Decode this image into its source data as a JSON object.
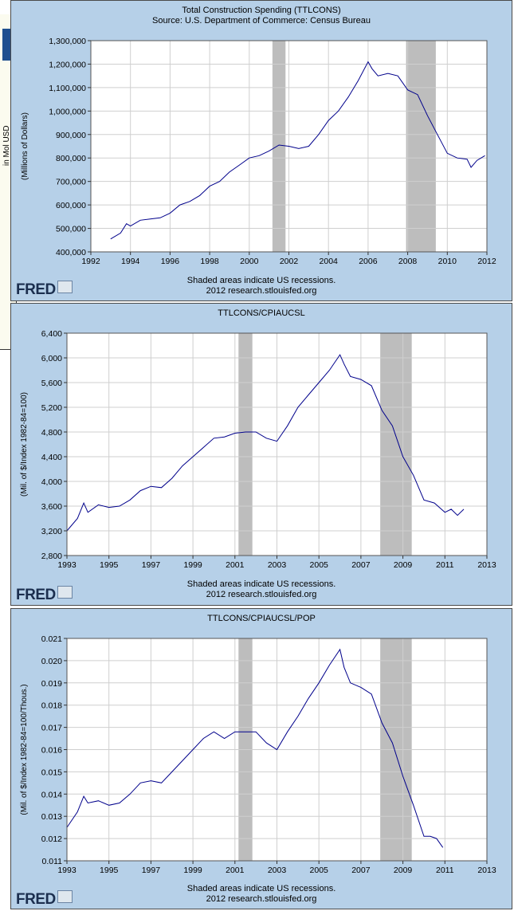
{
  "background_fragment": {
    "text": "in Mol USD"
  },
  "chart_data": [
    {
      "type": "line",
      "title": "Total Construction Spending (TTLCONS)",
      "subtitle": "Source: U.S. Department of Commerce: Census Bureau",
      "xlabel": "",
      "ylabel": "(Millions of Dollars)",
      "xlim": [
        1992,
        2012
      ],
      "ylim": [
        400000,
        1300000
      ],
      "xticks": [
        1992,
        1994,
        1996,
        1998,
        2000,
        2002,
        2004,
        2006,
        2008,
        2010,
        2012
      ],
      "yticks": [
        400000,
        500000,
        600000,
        700000,
        800000,
        900000,
        1000000,
        1100000,
        1200000,
        1300000
      ],
      "ytick_labels": [
        "400,000",
        "500,000",
        "600,000",
        "700,000",
        "800,000",
        "900,000",
        "1,000,000",
        "1,100,000",
        "1,200,000",
        "1,300,000"
      ],
      "recessions": [
        [
          2001.17,
          2001.83
        ],
        [
          2007.92,
          2009.42
        ]
      ],
      "series": [
        {
          "name": "TTLCONS",
          "color": "#00008b",
          "x": [
            1993.0,
            1993.5,
            1993.8,
            1994.0,
            1994.5,
            1995.0,
            1995.5,
            1996.0,
            1996.5,
            1997.0,
            1997.5,
            1998.0,
            1998.5,
            1999.0,
            1999.5,
            2000.0,
            2000.5,
            2001.0,
            2001.5,
            2002.0,
            2002.5,
            2003.0,
            2003.5,
            2004.0,
            2004.5,
            2005.0,
            2005.5,
            2006.0,
            2006.2,
            2006.5,
            2007.0,
            2007.5,
            2008.0,
            2008.5,
            2009.0,
            2009.5,
            2010.0,
            2010.5,
            2011.0,
            2011.2,
            2011.5,
            2011.9
          ],
          "values": [
            455000,
            480000,
            520000,
            510000,
            535000,
            540000,
            545000,
            565000,
            600000,
            615000,
            640000,
            680000,
            700000,
            740000,
            770000,
            800000,
            810000,
            830000,
            855000,
            850000,
            840000,
            850000,
            900000,
            960000,
            1000000,
            1060000,
            1130000,
            1210000,
            1180000,
            1150000,
            1160000,
            1150000,
            1090000,
            1070000,
            980000,
            900000,
            820000,
            800000,
            795000,
            760000,
            790000,
            810000
          ]
        }
      ],
      "source_line": "Shaded areas indicate US recessions.",
      "credit_line": "2012 research.stlouisfed.org",
      "logo": "FRED"
    },
    {
      "type": "line",
      "title": "TTLCONS/CPIAUCSL",
      "xlabel": "",
      "ylabel": "(Mil. of $/Index 1982-84=100)",
      "xlim": [
        1993,
        2013
      ],
      "ylim": [
        2800,
        6400
      ],
      "xticks": [
        1993,
        1995,
        1997,
        1999,
        2001,
        2003,
        2005,
        2007,
        2009,
        2011,
        2013
      ],
      "yticks": [
        2800,
        3200,
        3600,
        4000,
        4400,
        4800,
        5200,
        5600,
        6000,
        6400
      ],
      "ytick_labels": [
        "2,800",
        "3,200",
        "3,600",
        "4,000",
        "4,400",
        "4,800",
        "5,200",
        "5,600",
        "6,000",
        "6,400"
      ],
      "recessions": [
        [
          2001.17,
          2001.83
        ],
        [
          2007.92,
          2009.42
        ]
      ],
      "series": [
        {
          "name": "TTLCONS/CPIAUCSL",
          "color": "#00008b",
          "x": [
            1993.0,
            1993.5,
            1993.8,
            1994.0,
            1994.5,
            1995.0,
            1995.5,
            1996.0,
            1996.5,
            1997.0,
            1997.5,
            1998.0,
            1998.5,
            1999.0,
            1999.5,
            2000.0,
            2000.5,
            2001.0,
            2001.5,
            2002.0,
            2002.5,
            2003.0,
            2003.5,
            2004.0,
            2004.5,
            2005.0,
            2005.5,
            2006.0,
            2006.2,
            2006.5,
            2007.0,
            2007.5,
            2008.0,
            2008.5,
            2009.0,
            2009.5,
            2010.0,
            2010.5,
            2011.0,
            2011.3,
            2011.6,
            2011.9
          ],
          "values": [
            3200,
            3400,
            3650,
            3500,
            3620,
            3580,
            3600,
            3700,
            3850,
            3920,
            3900,
            4050,
            4250,
            4400,
            4550,
            4700,
            4720,
            4780,
            4800,
            4800,
            4700,
            4650,
            4900,
            5200,
            5400,
            5600,
            5800,
            6050,
            5900,
            5700,
            5650,
            5550,
            5150,
            4900,
            4400,
            4100,
            3700,
            3650,
            3500,
            3550,
            3450,
            3550
          ]
        }
      ],
      "source_line": "Shaded areas indicate US recessions.",
      "credit_line": "2012 research.stlouisfed.org",
      "logo": "FRED"
    },
    {
      "type": "line",
      "title": "TTLCONS/CPIAUCSL/POP",
      "xlabel": "",
      "ylabel": "(Mil. of $/Index 1982-84=100/Thous.)",
      "xlim": [
        1993,
        2013
      ],
      "ylim": [
        0.011,
        0.021
      ],
      "xticks": [
        1993,
        1995,
        1997,
        1999,
        2001,
        2003,
        2005,
        2007,
        2009,
        2011,
        2013
      ],
      "yticks": [
        0.011,
        0.012,
        0.013,
        0.014,
        0.015,
        0.016,
        0.017,
        0.018,
        0.019,
        0.02,
        0.021
      ],
      "ytick_labels": [
        "0.011",
        "0.012",
        "0.013",
        "0.014",
        "0.015",
        "0.016",
        "0.017",
        "0.018",
        "0.019",
        "0.020",
        "0.021"
      ],
      "recessions": [
        [
          2001.17,
          2001.83
        ],
        [
          2007.92,
          2009.42
        ]
      ],
      "series": [
        {
          "name": "TTLCONS/CPIAUCSL/POP",
          "color": "#00008b",
          "x": [
            1993.0,
            1993.5,
            1993.8,
            1994.0,
            1994.5,
            1995.0,
            1995.5,
            1996.0,
            1996.5,
            1997.0,
            1997.5,
            1998.0,
            1998.5,
            1999.0,
            1999.5,
            2000.0,
            2000.5,
            2001.0,
            2001.5,
            2002.0,
            2002.5,
            2003.0,
            2003.5,
            2004.0,
            2004.5,
            2005.0,
            2005.5,
            2006.0,
            2006.2,
            2006.5,
            2007.0,
            2007.5,
            2008.0,
            2008.5,
            2009.0,
            2009.5,
            2010.0,
            2010.3,
            2010.6,
            2010.9
          ],
          "values": [
            0.0125,
            0.0132,
            0.0139,
            0.0136,
            0.0137,
            0.0135,
            0.0136,
            0.014,
            0.0145,
            0.0146,
            0.0145,
            0.015,
            0.0155,
            0.016,
            0.0165,
            0.0168,
            0.0165,
            0.0168,
            0.0168,
            0.0168,
            0.0163,
            0.016,
            0.0168,
            0.0175,
            0.0183,
            0.019,
            0.0198,
            0.0205,
            0.0197,
            0.019,
            0.0188,
            0.0185,
            0.0172,
            0.0163,
            0.0148,
            0.0135,
            0.0121,
            0.0121,
            0.012,
            0.0116
          ]
        }
      ],
      "source_line": "Shaded areas indicate US recessions.",
      "credit_line": "2012 research.stlouisfed.org",
      "logo": "FRED"
    }
  ]
}
